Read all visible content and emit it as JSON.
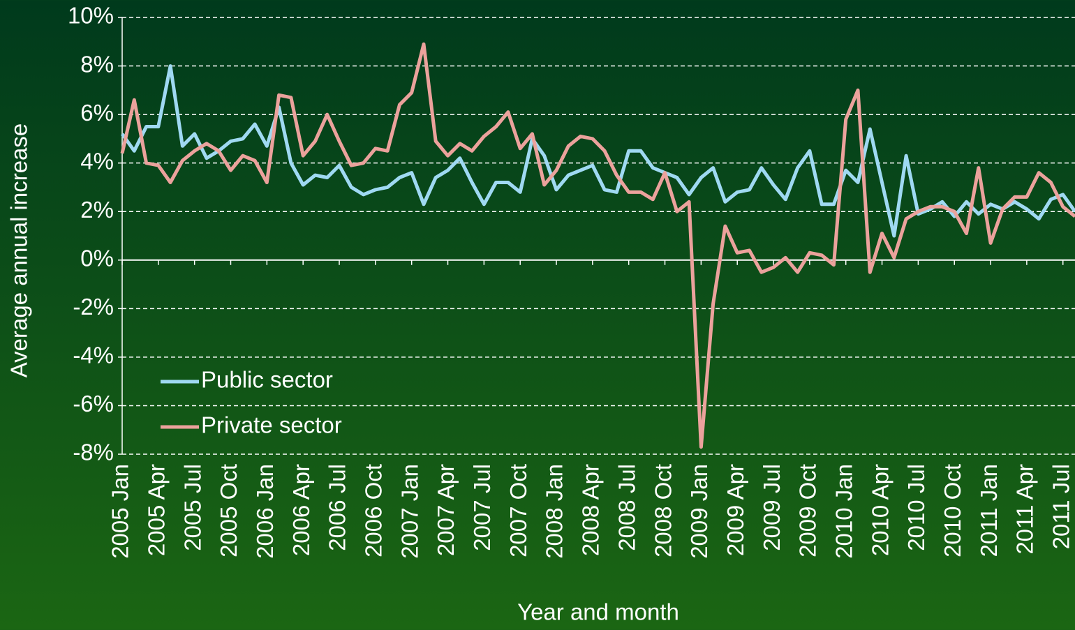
{
  "chart_data": {
    "type": "line",
    "x_label": "Year and month",
    "y_label": "Average annual increase",
    "categories": [
      "2005 Jan",
      null,
      null,
      "2005 Apr",
      null,
      null,
      "2005 Jul",
      null,
      null,
      "2005 Oct",
      null,
      null,
      "2006 Jan",
      null,
      null,
      "2006 Apr",
      null,
      null,
      "2006 Jul",
      null,
      null,
      "2006 Oct",
      null,
      null,
      "2007 Jan",
      null,
      null,
      "2007 Apr",
      null,
      null,
      "2007 Jul",
      null,
      null,
      "2007 Oct",
      null,
      null,
      "2008 Jan",
      null,
      null,
      "2008 Apr",
      null,
      null,
      "2008 Jul",
      null,
      null,
      "2008 Oct",
      null,
      null,
      "2009 Jan",
      null,
      null,
      "2009 Apr",
      null,
      null,
      "2009 Jul",
      null,
      null,
      "2009 Oct",
      null,
      null,
      "2010 Jan",
      null,
      null,
      "2010 Apr",
      null,
      null,
      "2010 Jul",
      null,
      null,
      "2010 Oct",
      null,
      null,
      "2011 Jan",
      null,
      null,
      "2011 Apr",
      null,
      null,
      "2011 Jul",
      null
    ],
    "series": [
      {
        "name": "Public sector",
        "color": "#9fd9f2",
        "values": [
          5.2,
          4.5,
          5.5,
          5.5,
          8.0,
          4.7,
          5.2,
          4.2,
          4.5,
          4.9,
          5.0,
          5.6,
          4.7,
          6.3,
          4.0,
          3.1,
          3.5,
          3.4,
          3.9,
          3.0,
          2.7,
          2.9,
          3.0,
          3.4,
          3.6,
          2.3,
          3.4,
          3.7,
          4.2,
          3.2,
          2.3,
          3.2,
          3.2,
          2.8,
          5.0,
          4.3,
          2.9,
          3.5,
          3.7,
          3.9,
          2.9,
          2.8,
          4.5,
          4.5,
          3.8,
          3.6,
          3.4,
          2.7,
          3.4,
          3.8,
          2.4,
          2.8,
          2.9,
          3.8,
          3.1,
          2.5,
          3.8,
          4.5,
          2.3,
          2.3,
          3.7,
          3.2,
          5.4,
          3.2,
          1.0,
          4.3,
          1.9,
          2.1,
          2.4,
          1.8,
          2.4,
          1.9,
          2.3,
          2.1,
          2.4,
          2.1,
          1.7,
          2.5,
          2.7,
          2.0
        ]
      },
      {
        "name": "Private sector",
        "color": "#eba29c",
        "values": [
          4.4,
          6.6,
          4.0,
          3.9,
          3.2,
          4.1,
          4.5,
          4.8,
          4.5,
          3.7,
          4.3,
          4.1,
          3.2,
          6.8,
          6.7,
          4.3,
          4.9,
          6.0,
          4.9,
          3.9,
          4.0,
          4.6,
          4.5,
          6.4,
          6.9,
          8.9,
          4.9,
          4.3,
          4.8,
          4.5,
          5.1,
          5.5,
          6.1,
          4.6,
          5.2,
          3.1,
          3.7,
          4.7,
          5.1,
          5.0,
          4.5,
          3.5,
          2.8,
          2.8,
          2.5,
          3.6,
          2.0,
          2.4,
          -7.7,
          -1.8,
          1.4,
          0.3,
          0.4,
          -0.5,
          -0.3,
          0.1,
          -0.5,
          0.3,
          0.2,
          -0.2,
          5.8,
          7.0,
          -0.5,
          1.1,
          0.1,
          1.7,
          2.0,
          2.2,
          2.2,
          2.0,
          1.1,
          3.8,
          0.7,
          2.1,
          2.6,
          2.6,
          3.6,
          3.2,
          2.2,
          1.8
        ]
      }
    ],
    "ylim": [
      -8,
      10
    ],
    "yticks": [
      {
        "value": -8,
        "label": "-8%"
      },
      {
        "value": -6,
        "label": "-6%"
      },
      {
        "value": -4,
        "label": "-4%"
      },
      {
        "value": -2,
        "label": "-2%"
      },
      {
        "value": 0,
        "label": "0%"
      },
      {
        "value": 2,
        "label": "2%"
      },
      {
        "value": 4,
        "label": "4%"
      },
      {
        "value": 6,
        "label": "6%"
      },
      {
        "value": 8,
        "label": "8%"
      },
      {
        "value": 10,
        "label": "10%"
      }
    ],
    "grid": true,
    "legend": "lower left"
  }
}
